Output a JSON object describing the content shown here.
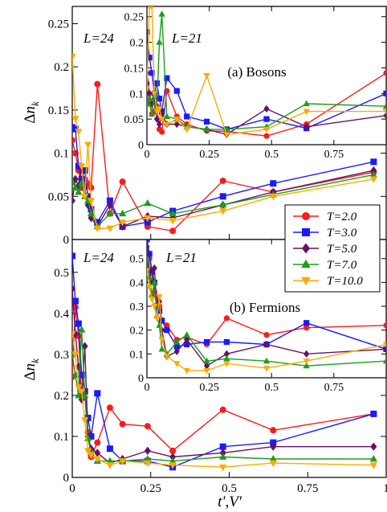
{
  "figure": {
    "xlabel": "t',V'",
    "ylabel": "Δn_k",
    "legend": {
      "placement": "right-middle",
      "entries": [
        {
          "label": "T=2.0",
          "color": "#ff1a1a",
          "marker": "circle"
        },
        {
          "label": "T=3.0",
          "color": "#1a1aff",
          "marker": "square"
        },
        {
          "label": "T=5.0",
          "color": "#661166",
          "marker": "diamond"
        },
        {
          "label": "T=7.0",
          "color": "#1a9e1a",
          "marker": "triangle-up"
        },
        {
          "label": "T=10.0",
          "color": "#ffaa00",
          "marker": "triangle-down"
        }
      ]
    }
  },
  "chart_data": [
    {
      "type": "line",
      "panel": "top",
      "label": "L=24",
      "caption": "(a) Bosons",
      "xlim": [
        0,
        1
      ],
      "ylim": [
        0,
        0.27
      ],
      "xticks": [
        0,
        0.25,
        0.5,
        0.75,
        1
      ],
      "xtick_labels": [],
      "yticks": [
        0,
        0.05,
        0.1,
        0.15,
        0.2,
        0.25
      ],
      "ytick_labels": [
        "0",
        "0.05",
        "0.1",
        "0.15",
        "0.2",
        "0.25"
      ],
      "series": [
        {
          "name": "T=2.0",
          "x": [
            0,
            0.01,
            0.02,
            0.03,
            0.04,
            0.05,
            0.06,
            0.08,
            0.12,
            0.16,
            0.24,
            0.32,
            0.48,
            0.64,
            0.96
          ],
          "y": [
            0.115,
            0.1,
            0.08,
            0.06,
            0.07,
            0.065,
            0.06,
            0.18,
            0.03,
            0.067,
            0.015,
            0.01,
            0.068,
            0.055,
            0.078
          ]
        },
        {
          "name": "T=3.0",
          "x": [
            0,
            0.01,
            0.02,
            0.03,
            0.04,
            0.05,
            0.06,
            0.08,
            0.12,
            0.16,
            0.24,
            0.32,
            0.48,
            0.64,
            0.96
          ],
          "y": [
            0.13,
            0.128,
            0.085,
            0.07,
            0.08,
            0.05,
            0.035,
            0.02,
            0.045,
            0.015,
            0.02,
            0.033,
            0.05,
            0.065,
            0.09
          ]
        },
        {
          "name": "T=5.0",
          "x": [
            0,
            0.01,
            0.02,
            0.03,
            0.04,
            0.05,
            0.06,
            0.08,
            0.12,
            0.16,
            0.24,
            0.32,
            0.48,
            0.64,
            0.96
          ],
          "y": [
            0.045,
            0.07,
            0.062,
            0.082,
            0.06,
            0.04,
            0.025,
            0.015,
            0.04,
            0.015,
            0.027,
            0.025,
            0.04,
            0.055,
            0.08
          ]
        },
        {
          "name": "T=7.0",
          "x": [
            0,
            0.01,
            0.02,
            0.03,
            0.04,
            0.05,
            0.06,
            0.08,
            0.12,
            0.16,
            0.24,
            0.32,
            0.48,
            0.64,
            0.96
          ],
          "y": [
            0.067,
            0.06,
            0.055,
            0.065,
            0.05,
            0.045,
            0.03,
            0.015,
            0.03,
            0.03,
            0.042,
            0.03,
            0.04,
            0.052,
            0.075
          ]
        },
        {
          "name": "T=10.0",
          "x": [
            0,
            0.01,
            0.02,
            0.03,
            0.04,
            0.05,
            0.06,
            0.08,
            0.12,
            0.16,
            0.24,
            0.32,
            0.48,
            0.64,
            0.96
          ],
          "y": [
            0.212,
            0.14,
            0.125,
            0.085,
            0.05,
            0.11,
            0.045,
            0.013,
            0.013,
            0.02,
            0.025,
            0.022,
            0.033,
            0.05,
            0.07
          ]
        }
      ],
      "inset": {
        "label": "L=21",
        "xlim": [
          0,
          0.96
        ],
        "ylim": [
          0,
          0.27
        ],
        "xticks": [
          0,
          0.25,
          0.5,
          0.75
        ],
        "xtick_labels": [
          "0",
          "0.25",
          "0.5",
          "0.75"
        ],
        "yticks": [
          0,
          0.05,
          0.1,
          0.15,
          0.2,
          0.25
        ],
        "ytick_labels": [
          "0",
          "0.05",
          "0.1",
          "0.15",
          "0.2",
          "0.25"
        ],
        "series": [
          {
            "name": "T=2.0",
            "x": [
              0,
              0.01,
              0.02,
              0.03,
              0.04,
              0.05,
              0.06,
              0.08,
              0.12,
              0.16,
              0.24,
              0.32,
              0.48,
              0.64,
              0.96
            ],
            "y": [
              0.12,
              0.08,
              0.06,
              0.065,
              0.075,
              0.03,
              0.025,
              0.105,
              0.055,
              0.04,
              0.027,
              0.026,
              0.017,
              0.04,
              0.14
            ]
          },
          {
            "name": "T=3.0",
            "x": [
              0,
              0.01,
              0.02,
              0.03,
              0.04,
              0.05,
              0.06,
              0.08,
              0.12,
              0.16,
              0.24,
              0.32,
              0.48,
              0.64,
              0.96
            ],
            "y": [
              0.22,
              0.17,
              0.14,
              0.1,
              0.12,
              0.09,
              0.065,
              0.13,
              0.105,
              0.055,
              0.045,
              0.03,
              0.05,
              0.032,
              0.1
            ]
          },
          {
            "name": "T=5.0",
            "x": [
              0,
              0.01,
              0.02,
              0.03,
              0.04,
              0.05,
              0.06,
              0.08,
              0.12,
              0.16,
              0.24,
              0.32,
              0.48,
              0.64,
              0.96
            ],
            "y": [
              0.14,
              0.1,
              0.08,
              0.09,
              0.05,
              0.04,
              0.06,
              0.04,
              0.04,
              0.035,
              0.03,
              0.02,
              0.07,
              0.035,
              0.057
            ]
          },
          {
            "name": "T=7.0",
            "x": [
              0,
              0.01,
              0.02,
              0.03,
              0.04,
              0.05,
              0.06,
              0.08,
              0.12,
              0.16,
              0.24,
              0.32,
              0.48,
              0.64,
              0.96
            ],
            "y": [
              0.08,
              0.09,
              0.06,
              0.1,
              0.075,
              0.2,
              0.255,
              0.055,
              0.05,
              0.035,
              0.03,
              0.03,
              0.035,
              0.08,
              0.075
            ]
          },
          {
            "name": "T=10.0",
            "x": [
              0,
              0.01,
              0.02,
              0.03,
              0.04,
              0.05,
              0.06,
              0.08,
              0.12,
              0.16,
              0.24,
              0.32,
              0.48,
              0.64,
              0.96
            ],
            "y": [
              0.11,
              0.27,
              0.27,
              0.1,
              0.065,
              0.07,
              0.05,
              0.04,
              0.05,
              0.03,
              0.135,
              0.02,
              0.03,
              0.065,
              0.065
            ]
          }
        ]
      }
    },
    {
      "type": "line",
      "panel": "bottom",
      "label": "L=24",
      "caption": "(b) Fermions",
      "xlim": [
        0,
        1
      ],
      "ylim": [
        0,
        0.58
      ],
      "xticks": [
        0,
        0.25,
        0.5,
        0.75,
        1
      ],
      "xtick_labels": [
        "0",
        "0.25",
        "0.5",
        "0.75",
        "1"
      ],
      "yticks": [
        0,
        0.1,
        0.2,
        0.3,
        0.4,
        0.5
      ],
      "ytick_labels": [
        "0",
        "0.1",
        "0.2",
        "0.3",
        "0.4",
        "0.5"
      ],
      "series": [
        {
          "name": "T=2.0",
          "x": [
            0,
            0.01,
            0.02,
            0.03,
            0.04,
            0.05,
            0.06,
            0.08,
            0.12,
            0.16,
            0.24,
            0.32,
            0.48,
            0.64,
            0.96
          ],
          "y": [
            0.245,
            0.415,
            0.345,
            0.2,
            0.21,
            0.11,
            0.05,
            0.085,
            0.17,
            0.13,
            0.125,
            0.065,
            0.165,
            0.115,
            0.155
          ]
        },
        {
          "name": "T=3.0",
          "x": [
            0,
            0.01,
            0.02,
            0.03,
            0.04,
            0.05,
            0.06,
            0.08,
            0.12,
            0.16,
            0.24,
            0.32,
            0.48,
            0.64,
            0.96
          ],
          "y": [
            0.54,
            0.43,
            0.375,
            0.25,
            0.21,
            0.145,
            0.1,
            0.205,
            0.07,
            0.04,
            0.04,
            0.025,
            0.075,
            0.085,
            0.155
          ]
        },
        {
          "name": "T=5.0",
          "x": [
            0,
            0.01,
            0.02,
            0.03,
            0.04,
            0.05,
            0.06,
            0.08,
            0.12,
            0.16,
            0.24,
            0.32,
            0.48,
            0.64,
            0.96
          ],
          "y": [
            0.46,
            0.35,
            0.27,
            0.19,
            0.32,
            0.1,
            0.07,
            0.06,
            0.035,
            0.045,
            0.065,
            0.05,
            0.06,
            0.075,
            0.075
          ]
        },
        {
          "name": "T=7.0",
          "x": [
            0,
            0.01,
            0.02,
            0.03,
            0.04,
            0.05,
            0.06,
            0.08,
            0.12,
            0.16,
            0.24,
            0.32,
            0.48,
            0.64,
            0.96
          ],
          "y": [
            0.3,
            0.25,
            0.2,
            0.36,
            0.2,
            0.095,
            0.06,
            0.04,
            0.04,
            0.04,
            0.045,
            0.04,
            0.05,
            0.045,
            0.045
          ]
        },
        {
          "name": "T=10.0",
          "x": [
            0,
            0.01,
            0.02,
            0.03,
            0.04,
            0.05,
            0.06,
            0.08,
            0.12,
            0.16,
            0.24,
            0.32,
            0.48,
            0.64,
            0.96
          ],
          "y": [
            0.35,
            0.3,
            0.22,
            0.21,
            0.14,
            0.065,
            0.055,
            0.045,
            0.03,
            0.04,
            0.035,
            0.03,
            0.025,
            0.035,
            0.03
          ]
        }
      ],
      "inset": {
        "label": "L=21",
        "xlim": [
          0,
          0.96
        ],
        "ylim": [
          0,
          0.58
        ],
        "xticks": [
          0,
          0.25,
          0.5,
          0.75
        ],
        "xtick_labels": [
          "0",
          "0.25",
          "0.5",
          "0.75"
        ],
        "yticks": [
          0,
          0.1,
          0.2,
          0.3,
          0.4,
          0.5
        ],
        "ytick_labels": [
          "0",
          "0.1",
          "0.2",
          "0.3",
          "0.4",
          "0.5"
        ],
        "series": [
          {
            "name": "T=2.0",
            "x": [
              0,
              0.01,
              0.02,
              0.03,
              0.04,
              0.05,
              0.06,
              0.08,
              0.12,
              0.16,
              0.24,
              0.32,
              0.48,
              0.64,
              0.96
            ],
            "y": [
              0.58,
              0.5,
              0.44,
              0.36,
              0.34,
              0.3,
              0.24,
              0.22,
              0.16,
              0.17,
              0.14,
              0.25,
              0.18,
              0.21,
              0.22
            ]
          },
          {
            "name": "T=3.0",
            "x": [
              0,
              0.01,
              0.02,
              0.03,
              0.04,
              0.05,
              0.06,
              0.08,
              0.12,
              0.16,
              0.24,
              0.32,
              0.48,
              0.64,
              0.96
            ],
            "y": [
              0.58,
              0.52,
              0.45,
              0.4,
              0.3,
              0.28,
              0.24,
              0.2,
              0.13,
              0.14,
              0.15,
              0.15,
              0.14,
              0.23,
              0.12
            ]
          },
          {
            "name": "T=5.0",
            "x": [
              0,
              0.01,
              0.02,
              0.03,
              0.04,
              0.05,
              0.06,
              0.08,
              0.12,
              0.16,
              0.24,
              0.32,
              0.48,
              0.64,
              0.96
            ],
            "y": [
              0.55,
              0.45,
              0.4,
              0.46,
              0.3,
              0.32,
              0.2,
              0.09,
              0.11,
              0.16,
              0.05,
              0.1,
              0.14,
              0.1,
              0.12
            ]
          },
          {
            "name": "T=7.0",
            "x": [
              0,
              0.01,
              0.02,
              0.03,
              0.04,
              0.05,
              0.06,
              0.08,
              0.12,
              0.16,
              0.24,
              0.32,
              0.48,
              0.64,
              0.96
            ],
            "y": [
              0.5,
              0.42,
              0.35,
              0.4,
              0.26,
              0.22,
              0.12,
              0.1,
              0.15,
              0.18,
              0.07,
              0.08,
              0.07,
              0.05,
              0.07
            ]
          },
          {
            "name": "T=10.0",
            "x": [
              0,
              0.01,
              0.02,
              0.03,
              0.04,
              0.05,
              0.06,
              0.08,
              0.12,
              0.16,
              0.24,
              0.32,
              0.48,
              0.64,
              0.96
            ],
            "y": [
              0.45,
              0.38,
              0.33,
              0.3,
              0.25,
              0.34,
              0.16,
              0.09,
              0.06,
              0.03,
              0.03,
              0.06,
              0.04,
              0.07,
              0.14
            ]
          }
        ]
      }
    }
  ]
}
